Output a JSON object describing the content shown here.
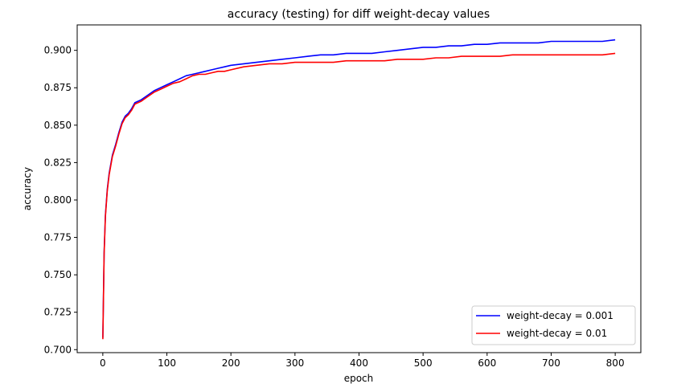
{
  "chart_data": {
    "type": "line",
    "title": "accuracy (testing) for diff weight-decay values",
    "xlabel": "epoch",
    "ylabel": "accuracy",
    "xlim": [
      -40,
      840
    ],
    "ylim": [
      0.698,
      0.917
    ],
    "xticks": [
      0,
      100,
      200,
      300,
      400,
      500,
      600,
      700,
      800
    ],
    "xtick_labels": [
      "0",
      "100",
      "200",
      "300",
      "400",
      "500",
      "600",
      "700",
      "800"
    ],
    "yticks": [
      0.7,
      0.725,
      0.75,
      0.775,
      0.8,
      0.825,
      0.85,
      0.875,
      0.9
    ],
    "ytick_labels": [
      "0.700",
      "0.725",
      "0.750",
      "0.775",
      "0.800",
      "0.825",
      "0.850",
      "0.875",
      "0.900"
    ],
    "grid": false,
    "legend_position": "bottom-right",
    "series": [
      {
        "name": "weight-decay = 0.001",
        "color": "#0000ff",
        "x": [
          0,
          2,
          4,
          7,
          10,
          15,
          20,
          25,
          30,
          35,
          40,
          45,
          50,
          60,
          70,
          80,
          90,
          100,
          110,
          120,
          130,
          140,
          150,
          160,
          170,
          180,
          190,
          200,
          220,
          240,
          260,
          280,
          300,
          320,
          340,
          360,
          380,
          400,
          420,
          440,
          460,
          480,
          500,
          520,
          540,
          560,
          580,
          600,
          620,
          640,
          660,
          680,
          700,
          720,
          740,
          760,
          780,
          800
        ],
        "y": [
          0.708,
          0.765,
          0.79,
          0.807,
          0.818,
          0.83,
          0.837,
          0.845,
          0.852,
          0.856,
          0.858,
          0.861,
          0.865,
          0.867,
          0.87,
          0.873,
          0.875,
          0.877,
          0.879,
          0.881,
          0.883,
          0.884,
          0.885,
          0.886,
          0.887,
          0.888,
          0.889,
          0.89,
          0.891,
          0.892,
          0.893,
          0.894,
          0.895,
          0.896,
          0.897,
          0.897,
          0.898,
          0.898,
          0.898,
          0.899,
          0.9,
          0.901,
          0.902,
          0.902,
          0.903,
          0.903,
          0.904,
          0.904,
          0.905,
          0.905,
          0.905,
          0.905,
          0.906,
          0.906,
          0.906,
          0.906,
          0.906,
          0.907
        ]
      },
      {
        "name": "weight-decay = 0.01",
        "color": "#ff0000",
        "x": [
          0,
          2,
          4,
          7,
          10,
          15,
          20,
          25,
          30,
          35,
          40,
          45,
          50,
          60,
          70,
          80,
          90,
          100,
          110,
          120,
          130,
          140,
          150,
          160,
          170,
          180,
          190,
          200,
          220,
          240,
          260,
          280,
          300,
          320,
          340,
          360,
          380,
          400,
          420,
          440,
          460,
          480,
          500,
          520,
          540,
          560,
          580,
          600,
          620,
          640,
          660,
          680,
          700,
          720,
          740,
          760,
          780,
          800
        ],
        "y": [
          0.707,
          0.764,
          0.789,
          0.806,
          0.817,
          0.829,
          0.836,
          0.844,
          0.851,
          0.855,
          0.857,
          0.86,
          0.864,
          0.866,
          0.869,
          0.872,
          0.874,
          0.876,
          0.878,
          0.879,
          0.881,
          0.883,
          0.884,
          0.884,
          0.885,
          0.886,
          0.886,
          0.887,
          0.889,
          0.89,
          0.891,
          0.891,
          0.892,
          0.892,
          0.892,
          0.892,
          0.893,
          0.893,
          0.893,
          0.893,
          0.894,
          0.894,
          0.894,
          0.895,
          0.895,
          0.896,
          0.896,
          0.896,
          0.896,
          0.897,
          0.897,
          0.897,
          0.897,
          0.897,
          0.897,
          0.897,
          0.897,
          0.898
        ]
      }
    ]
  }
}
